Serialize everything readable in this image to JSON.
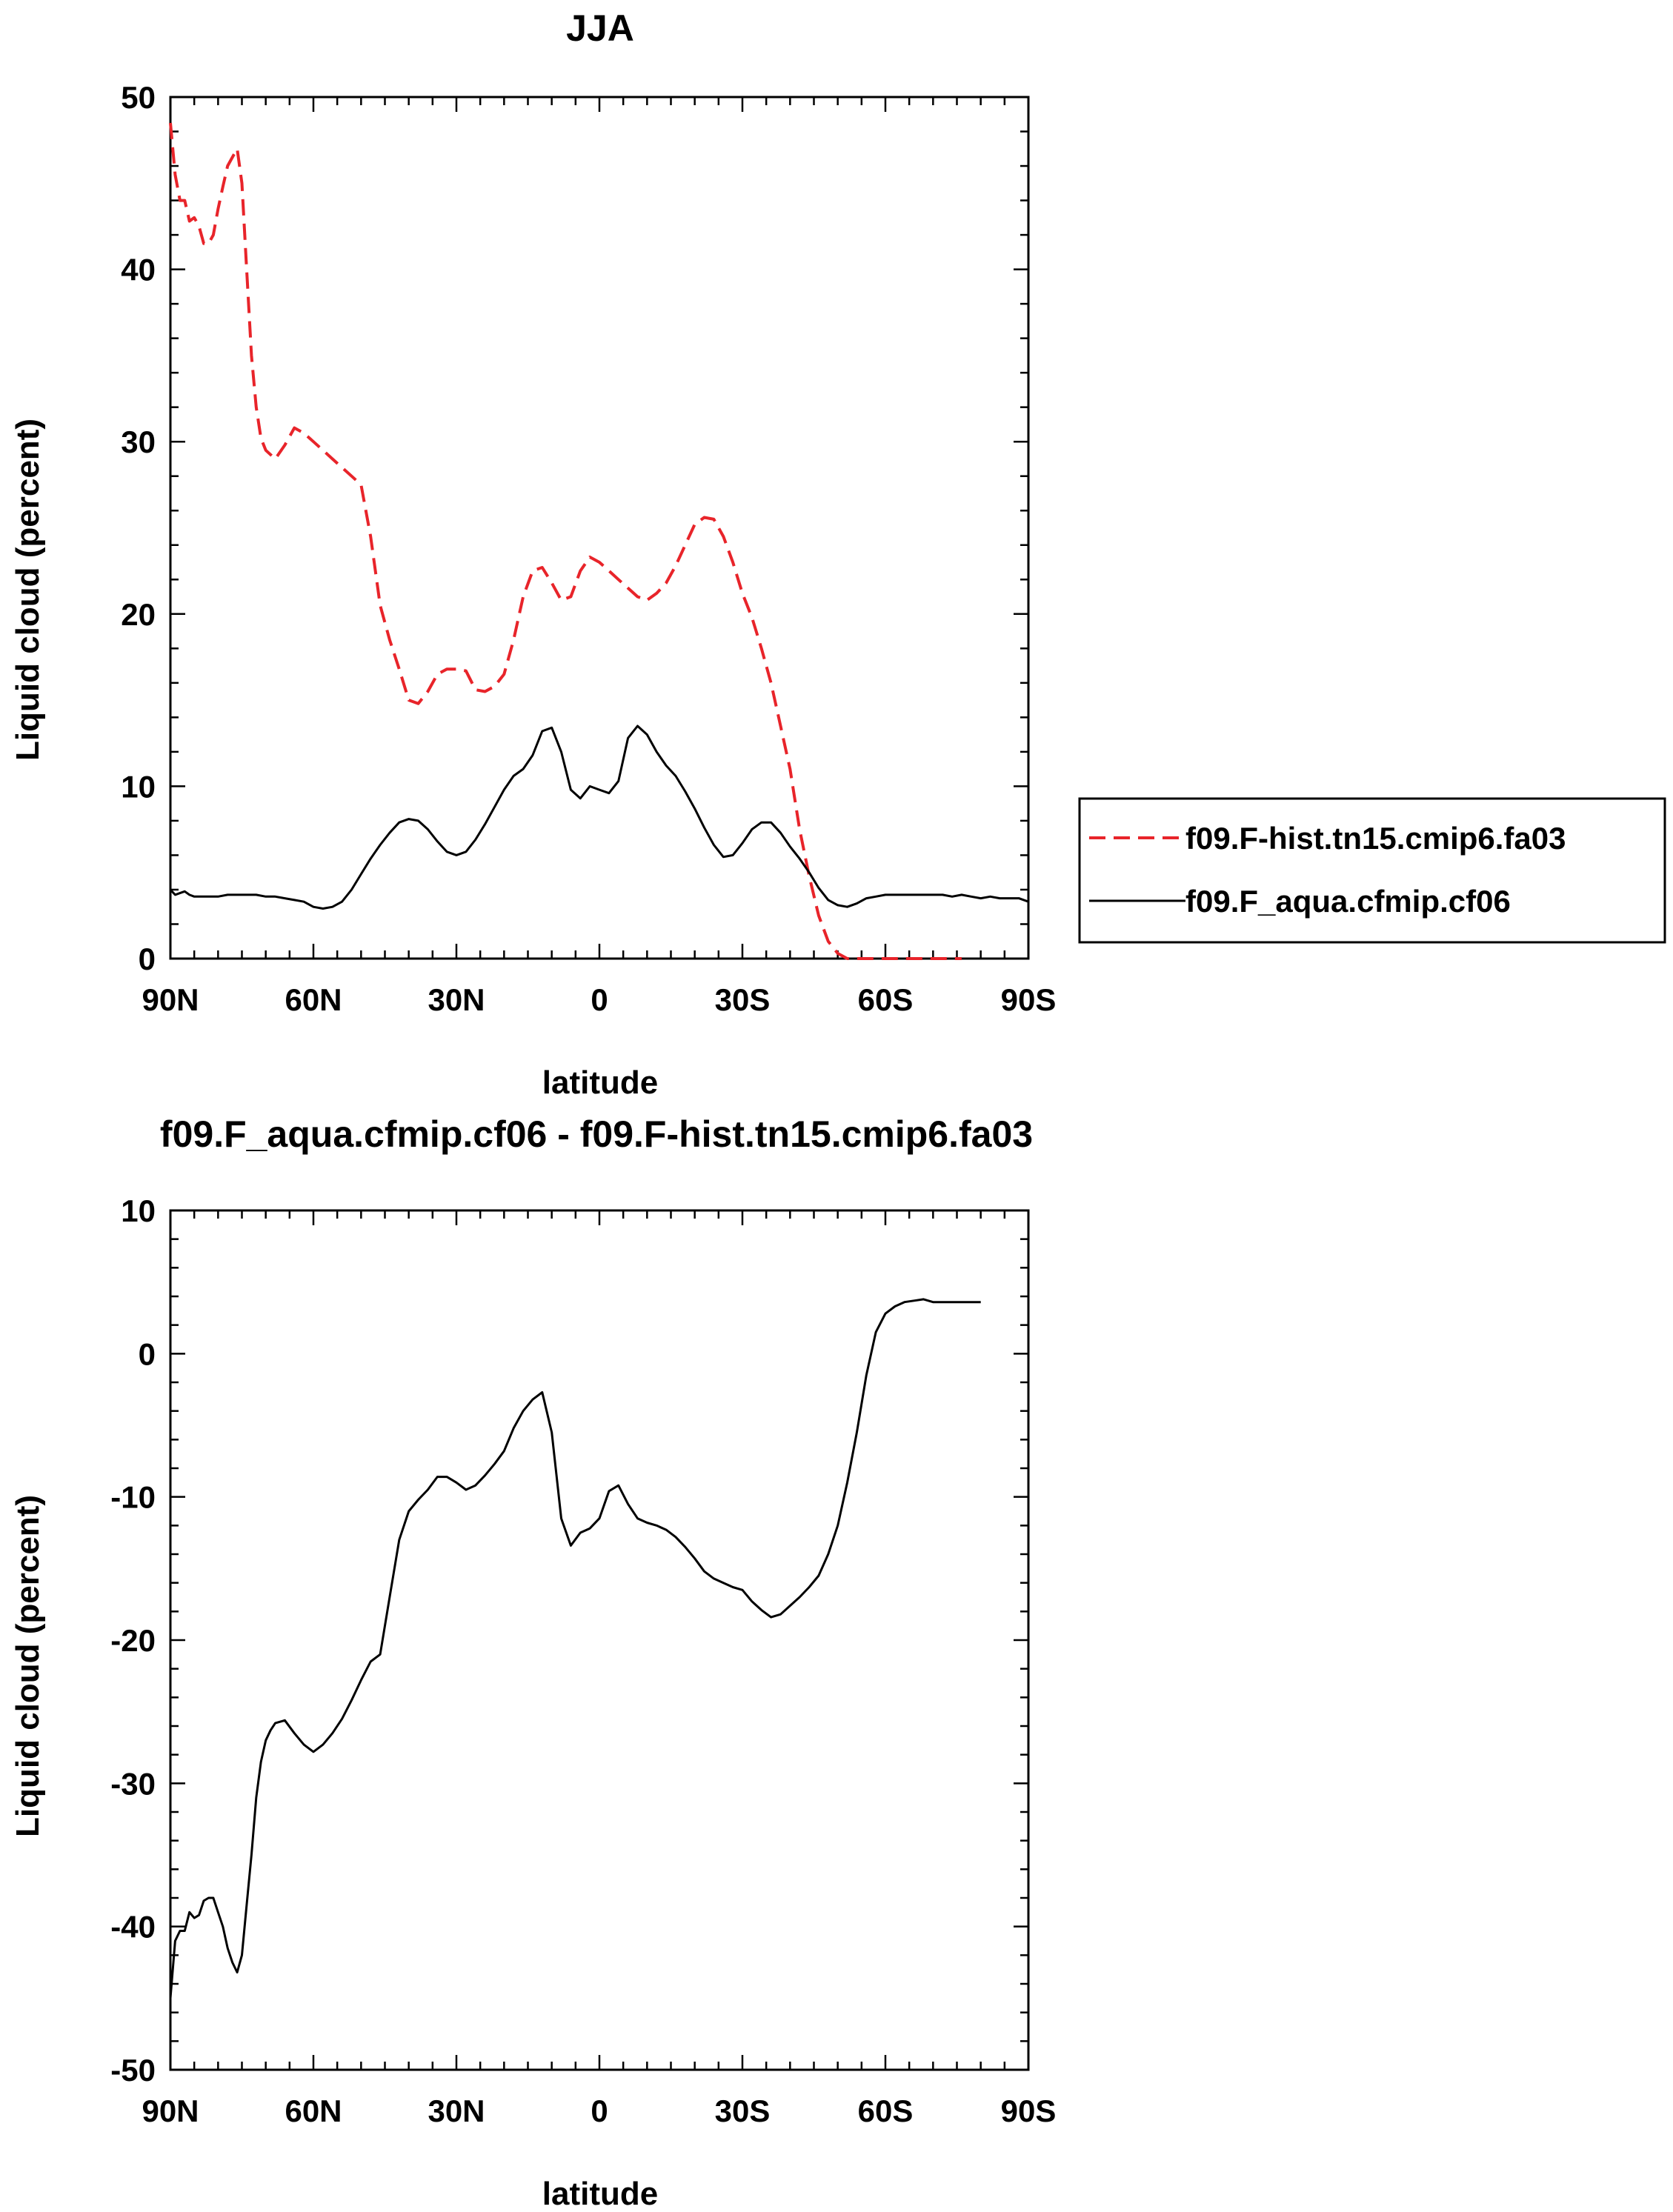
{
  "chart_data": [
    {
      "type": "line",
      "title": "JJA",
      "xlabel": "latitude",
      "ylabel": "Liquid cloud (percent)",
      "x_ticks": [
        "90N",
        "60N",
        "30N",
        "0",
        "30S",
        "60S",
        "90S"
      ],
      "y_ticks": [
        "0",
        "10",
        "20",
        "30",
        "40",
        "50"
      ],
      "xlim": [
        90,
        -90
      ],
      "ylim": [
        0,
        50
      ],
      "x_unit_note": "latitude in degrees, north positive",
      "legend_placement": "right",
      "series": [
        {
          "name": "f09.F-hist.tn15.cmip6.fa03",
          "color": "#e8242a",
          "dash": "dashed",
          "x": [
            90,
            89,
            88,
            87,
            86,
            85,
            84,
            83,
            82,
            81,
            80,
            79,
            78,
            77,
            76,
            75,
            74,
            73,
            72,
            71,
            70,
            68,
            66,
            64,
            62,
            60,
            58,
            56,
            54,
            52,
            50,
            48,
            46,
            44,
            42,
            40,
            38,
            36,
            34,
            32,
            30,
            28,
            26,
            24,
            22,
            20,
            18,
            16,
            14,
            12,
            10,
            8,
            6,
            4,
            2,
            0,
            -2,
            -4,
            -6,
            -8,
            -10,
            -12,
            -14,
            -16,
            -18,
            -20,
            -22,
            -24,
            -26,
            -28,
            -30,
            -32,
            -34,
            -36,
            -38,
            -40,
            -42,
            -44,
            -46,
            -48,
            -50,
            -52,
            -54,
            -56,
            -58,
            -60,
            -62,
            -64,
            -66,
            -68,
            -70,
            -72,
            -74,
            -76
          ],
          "y": [
            48.5,
            45.5,
            44.0,
            44.0,
            42.8,
            43.0,
            42.5,
            41.5,
            41.5,
            42.0,
            43.5,
            44.8,
            46.0,
            46.5,
            47.0,
            45.0,
            40.0,
            35.0,
            32.0,
            30.2,
            29.5,
            29.0,
            29.8,
            30.8,
            30.5,
            30.0,
            29.5,
            29.0,
            28.5,
            28.0,
            27.5,
            24.5,
            20.5,
            18.5,
            16.8,
            15.0,
            14.8,
            15.5,
            16.5,
            16.8,
            16.8,
            16.7,
            15.6,
            15.5,
            15.8,
            16.5,
            18.5,
            21.0,
            22.5,
            22.7,
            21.8,
            20.8,
            21.0,
            22.5,
            23.3,
            23.0,
            22.5,
            22.0,
            21.5,
            21.0,
            20.8,
            21.2,
            21.8,
            22.8,
            24.0,
            25.2,
            25.6,
            25.5,
            24.5,
            23.0,
            21.2,
            19.8,
            18.0,
            16.0,
            13.5,
            11.0,
            7.5,
            4.8,
            2.5,
            1.0,
            0.3,
            0.0,
            0.0,
            0.0,
            0.0,
            0.0,
            0.0,
            0.0,
            0.0,
            0.0,
            0.0,
            0.0,
            0.0,
            0.0
          ]
        },
        {
          "name": "f09.F_aqua.cfmip.cf06",
          "color": "#000000",
          "dash": "solid",
          "x": [
            90,
            89,
            88,
            87,
            86,
            85,
            84,
            82,
            80,
            78,
            76,
            74,
            72,
            70,
            68,
            66,
            64,
            62,
            60,
            58,
            56,
            54,
            52,
            50,
            48,
            46,
            44,
            42,
            40,
            38,
            36,
            34,
            32,
            30,
            28,
            26,
            24,
            22,
            20,
            18,
            16,
            14,
            12,
            10,
            8,
            6,
            4,
            2,
            0,
            -2,
            -4,
            -6,
            -8,
            -10,
            -12,
            -14,
            -16,
            -18,
            -20,
            -22,
            -24,
            -26,
            -28,
            -30,
            -32,
            -34,
            -36,
            -38,
            -40,
            -42,
            -44,
            -46,
            -48,
            -50,
            -52,
            -54,
            -56,
            -58,
            -60,
            -62,
            -64,
            -66,
            -68,
            -70,
            -72,
            -74,
            -76,
            -78,
            -80,
            -82,
            -84,
            -86,
            -88,
            -90
          ],
          "y": [
            4.0,
            3.7,
            3.8,
            3.9,
            3.7,
            3.6,
            3.6,
            3.6,
            3.6,
            3.7,
            3.7,
            3.7,
            3.7,
            3.6,
            3.6,
            3.5,
            3.4,
            3.3,
            3.0,
            2.9,
            3.0,
            3.3,
            4.0,
            4.9,
            5.8,
            6.6,
            7.3,
            7.9,
            8.1,
            8.0,
            7.5,
            6.8,
            6.2,
            6.0,
            6.2,
            6.9,
            7.8,
            8.8,
            9.8,
            10.6,
            11.0,
            11.8,
            13.2,
            13.4,
            12.0,
            9.8,
            9.3,
            10.0,
            9.8,
            9.6,
            10.3,
            12.8,
            13.5,
            13.0,
            12.0,
            11.2,
            10.6,
            9.7,
            8.7,
            7.6,
            6.6,
            5.9,
            6.0,
            6.7,
            7.5,
            7.9,
            7.9,
            7.3,
            6.5,
            5.8,
            5.0,
            4.1,
            3.4,
            3.1,
            3.0,
            3.2,
            3.5,
            3.6,
            3.7,
            3.7,
            3.7,
            3.7,
            3.7,
            3.7,
            3.7,
            3.6,
            3.7,
            3.6,
            3.5,
            3.6,
            3.5,
            3.5,
            3.5,
            3.3
          ]
        }
      ]
    },
    {
      "type": "line",
      "title": "f09.F_aqua.cfmip.cf06 - f09.F-hist.tn15.cmip6.fa03",
      "xlabel": "latitude",
      "ylabel": "Liquid cloud (percent)",
      "x_ticks": [
        "90N",
        "60N",
        "30N",
        "0",
        "30S",
        "60S",
        "90S"
      ],
      "y_ticks": [
        "-50",
        "-40",
        "-30",
        "-20",
        "-10",
        "0",
        "10"
      ],
      "xlim": [
        90,
        -90
      ],
      "ylim": [
        -50,
        10
      ],
      "series": [
        {
          "color": "#000000",
          "dash": "solid",
          "x": [
            90,
            89,
            88,
            87,
            86,
            85,
            84,
            83,
            82,
            81,
            80,
            79,
            78,
            77,
            76,
            75,
            74,
            73,
            72,
            71,
            70,
            69,
            68,
            67,
            66,
            64,
            62,
            60,
            58,
            56,
            54,
            52,
            50,
            48,
            46,
            44,
            42,
            40,
            38,
            36,
            34,
            32,
            30,
            28,
            26,
            24,
            22,
            20,
            18,
            16,
            14,
            12,
            10,
            8,
            6,
            4,
            2,
            0,
            -2,
            -4,
            -6,
            -8,
            -10,
            -12,
            -14,
            -16,
            -18,
            -20,
            -22,
            -24,
            -26,
            -28,
            -30,
            -32,
            -34,
            -36,
            -38,
            -40,
            -42,
            -44,
            -46,
            -48,
            -50,
            -52,
            -54,
            -56,
            -58,
            -60,
            -62,
            -64,
            -66,
            -68,
            -70,
            -72,
            -74,
            -76,
            -78,
            -80
          ],
          "y": [
            -45.0,
            -41.0,
            -40.3,
            -40.3,
            -39.0,
            -39.4,
            -39.2,
            -38.2,
            -38.0,
            -38.0,
            -39.0,
            -40.0,
            -41.5,
            -42.5,
            -43.2,
            -42.0,
            -38.5,
            -35.0,
            -31.0,
            -28.5,
            -27.0,
            -26.3,
            -25.8,
            -25.7,
            -25.6,
            -26.5,
            -27.3,
            -27.8,
            -27.3,
            -26.5,
            -25.5,
            -24.2,
            -22.8,
            -21.5,
            -21.0,
            -17.0,
            -13.0,
            -11.0,
            -10.2,
            -9.5,
            -8.6,
            -8.6,
            -9.0,
            -9.5,
            -9.2,
            -8.5,
            -7.7,
            -6.8,
            -5.2,
            -4.0,
            -3.2,
            -2.7,
            -5.5,
            -11.5,
            -13.4,
            -12.5,
            -12.2,
            -11.5,
            -9.6,
            -9.2,
            -10.5,
            -11.5,
            -11.8,
            -12.0,
            -12.3,
            -12.8,
            -13.5,
            -14.3,
            -15.2,
            -15.7,
            -16.0,
            -16.3,
            -16.5,
            -17.3,
            -17.9,
            -18.4,
            -18.2,
            -17.6,
            -17.0,
            -16.3,
            -15.5,
            -14.0,
            -12.0,
            -9.0,
            -5.5,
            -1.5,
            1.5,
            2.8,
            3.3,
            3.6,
            3.7,
            3.8,
            3.6,
            3.6,
            3.6,
            3.6,
            3.6,
            3.6
          ]
        }
      ]
    }
  ]
}
